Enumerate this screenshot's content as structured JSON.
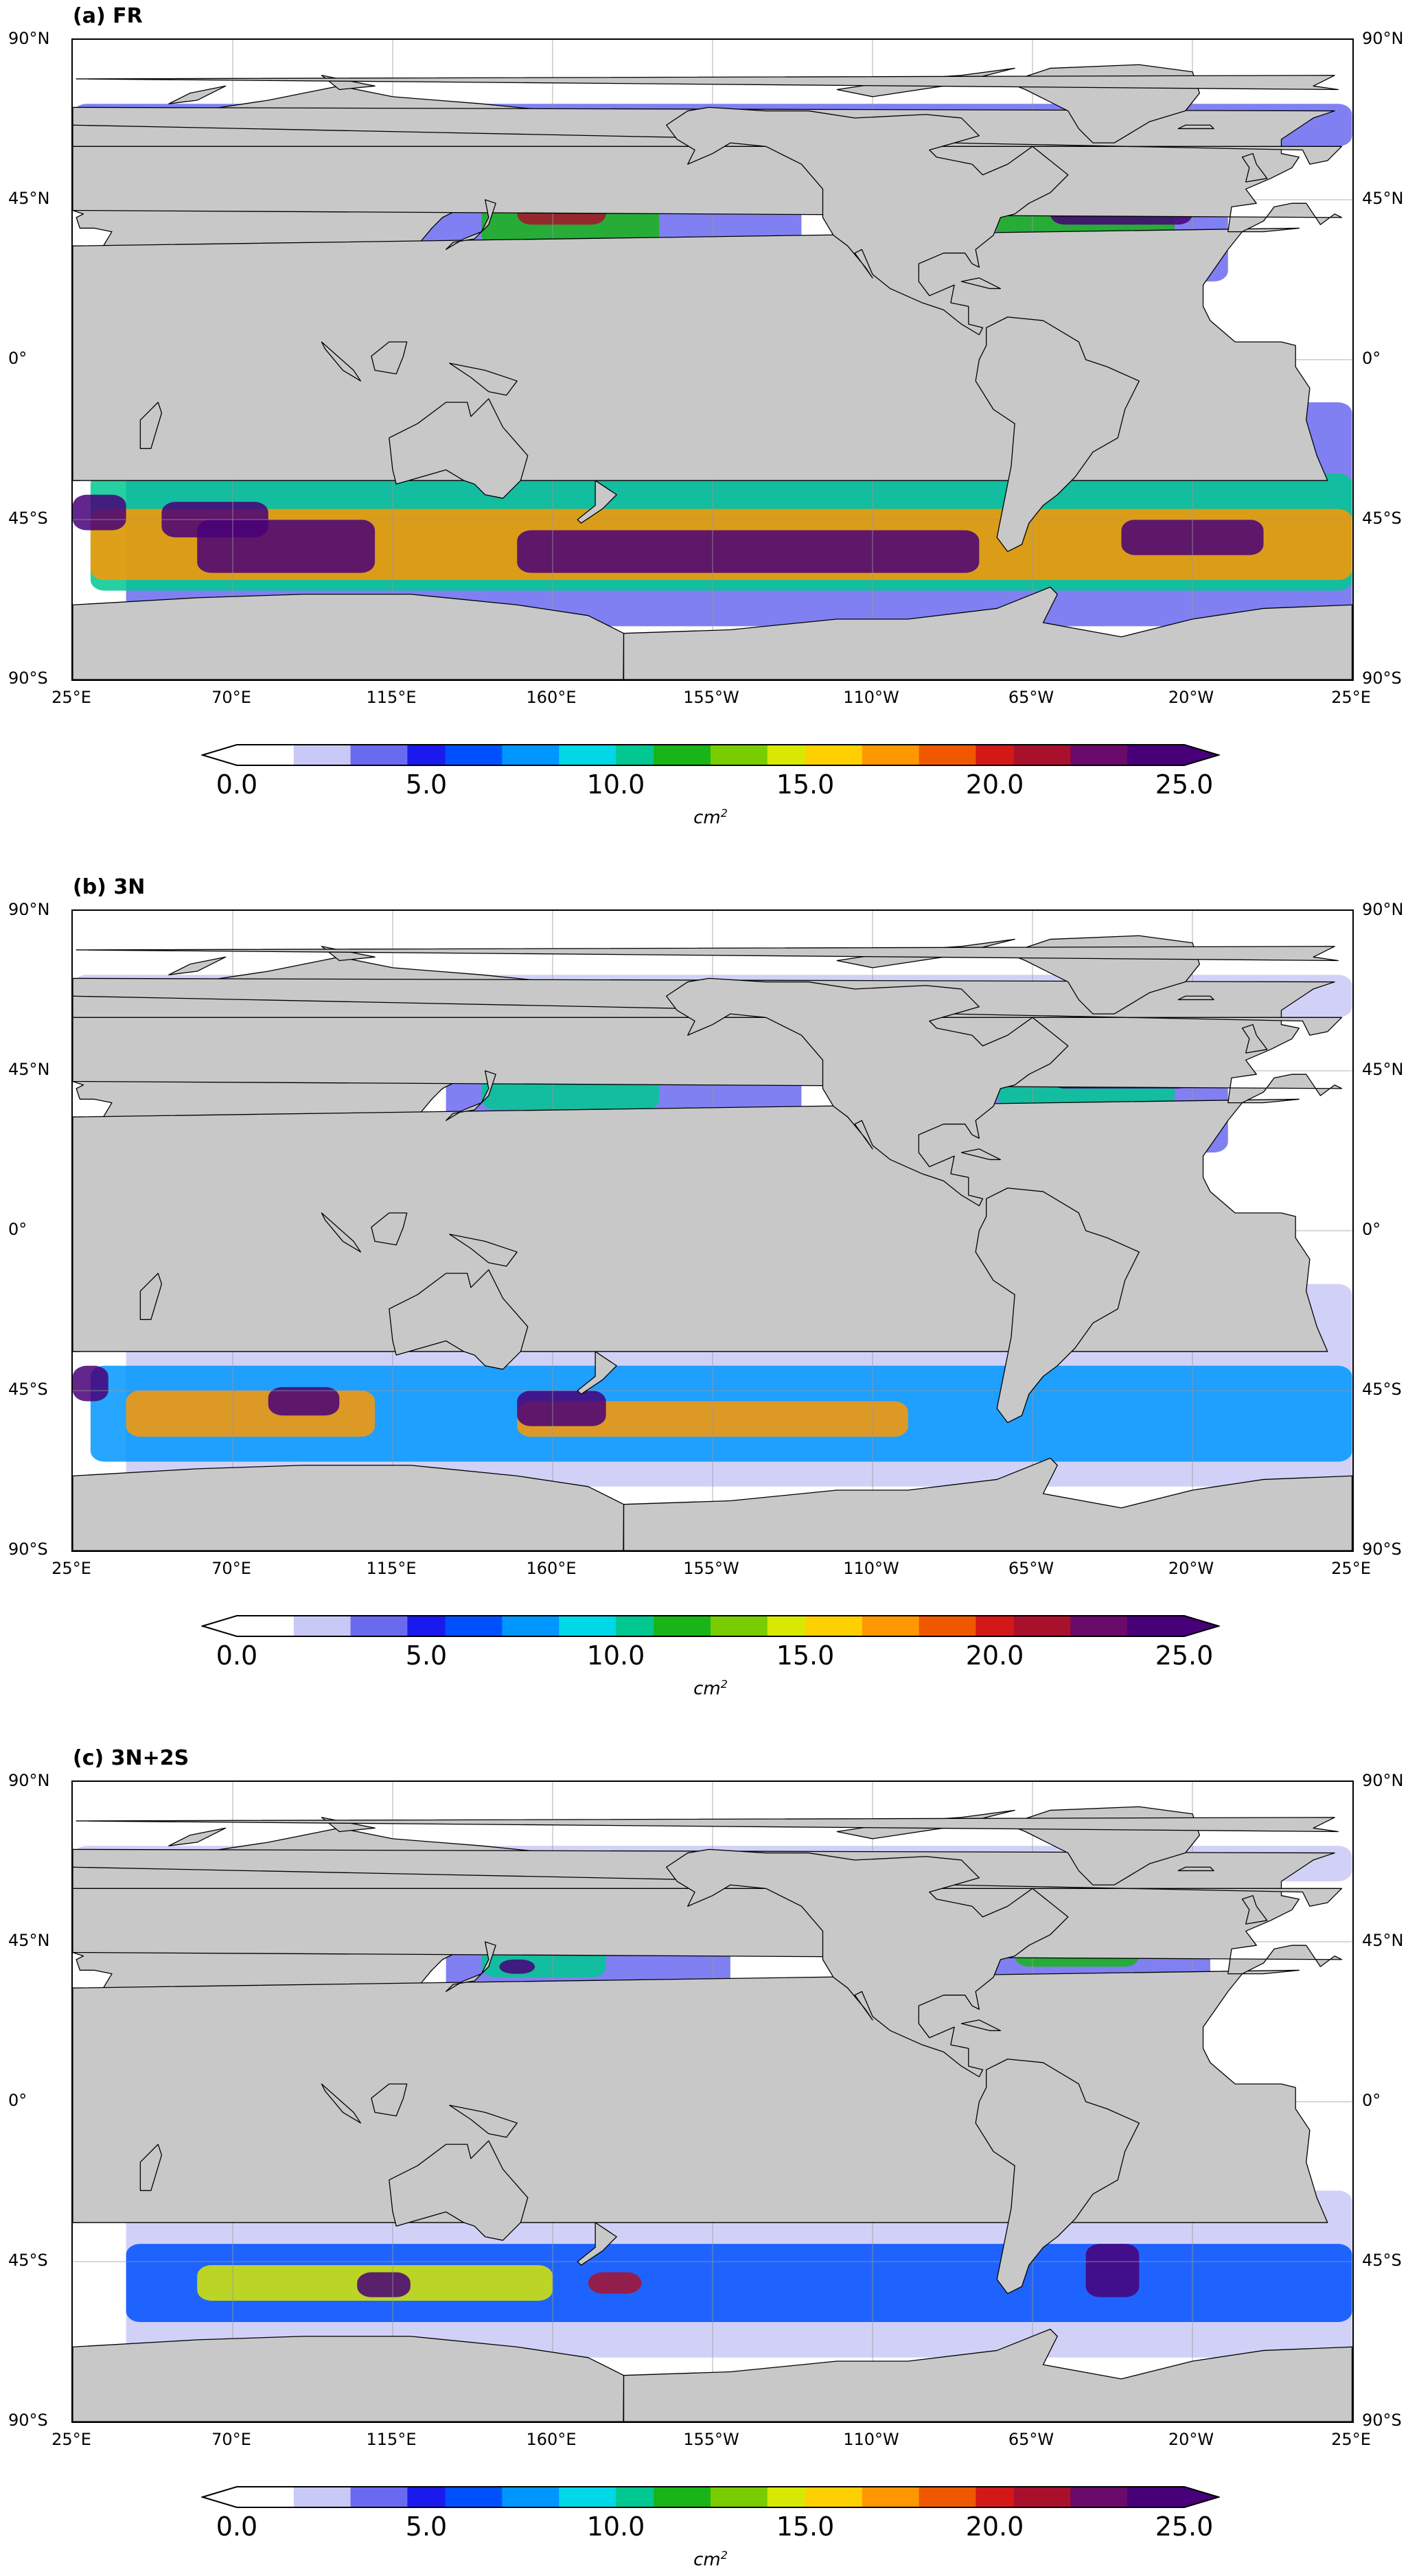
{
  "panels": [
    {
      "title": "(a) FR"
    },
    {
      "title": "(b) 3N"
    },
    {
      "title": "(c) 3N+2S"
    }
  ],
  "lat_labels": [
    "90°N",
    "45°N",
    "0°",
    "45°S",
    "90°S"
  ],
  "lon_labels": [
    "25°E",
    "70°E",
    "115°E",
    "160°E",
    "155°W",
    "110°W",
    "65°W",
    "20°W",
    "25°E"
  ],
  "colorbar": {
    "ticks": [
      "0.0",
      "5.0",
      "10.0",
      "15.0",
      "20.0",
      "25.0"
    ],
    "unit": "cm",
    "unit_exp": "2",
    "min": 0,
    "max": 25,
    "extend": "both",
    "colormap": [
      "#ffffff",
      "#c9c9f7",
      "#6a6af0",
      "#1a1aee",
      "#0050ff",
      "#0096ff",
      "#00d8e8",
      "#00c890",
      "#18b418",
      "#78cc00",
      "#d8e800",
      "#ffd000",
      "#ff9800",
      "#f05800",
      "#d41818",
      "#a8102c",
      "#6a0a6a",
      "#480078"
    ]
  },
  "colors": {
    "land": "#c8c8c8",
    "ocean_empty": "#ffffff",
    "coastline": "#000000",
    "grid": "#999999"
  }
}
